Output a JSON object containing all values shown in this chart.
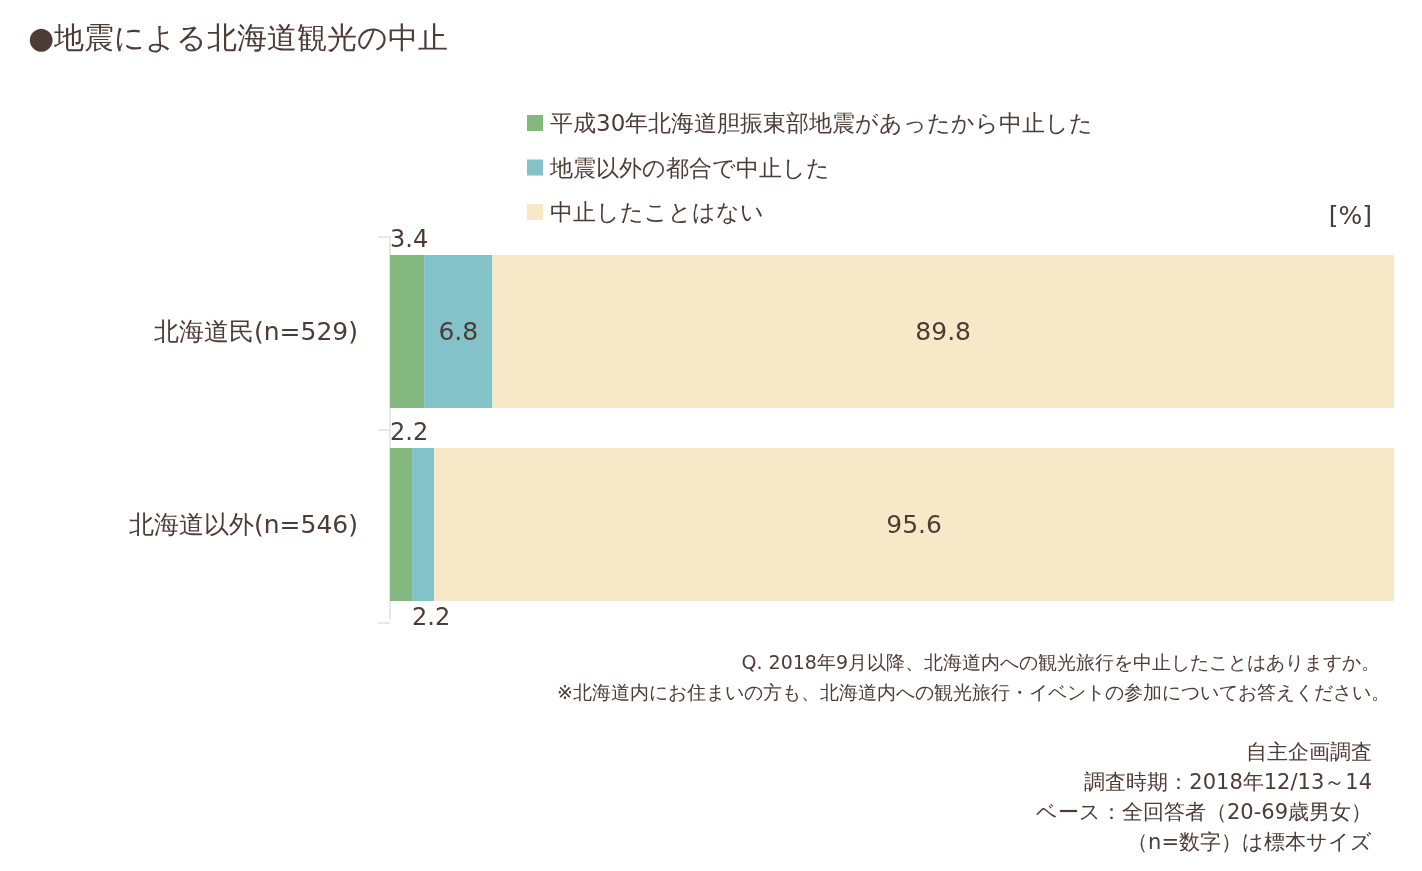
{
  "chart_data": {
    "type": "bar",
    "orientation": "horizontal",
    "stacked": true,
    "title": "●地震による北海道観光の中止",
    "categories": [
      "北海道民(n=529)",
      "北海道以外(n=546)"
    ],
    "xlim": [
      0,
      100
    ],
    "series": [
      {
        "name": "平成30年北海道胆振東部地震があったから中止した",
        "color": "#83b87f",
        "values": [
          3.4,
          2.2
        ]
      },
      {
        "name": "地震以外の都合で中止した",
        "color": "#82c2c8",
        "values": [
          6.8,
          2.2
        ]
      },
      {
        "name": "中止したことはない",
        "color": "#f7e9c8",
        "values": [
          89.8,
          95.6
        ]
      }
    ],
    "data_labels": true,
    "legend": "top",
    "annotations": [
      "[%]",
      "Q. 2018年9月以降、北海道内への観光旅行を中止したことはありますか。",
      "※北海道内にお住まいの方も、北海道内への観光旅行・イベントの参加についてお答えください。",
      "自主企画調査",
      "調査時期：2018年12/13～14",
      "ベース：全回答者（20-69歳男女）",
      "（n=数字）は標本サイズ"
    ]
  }
}
